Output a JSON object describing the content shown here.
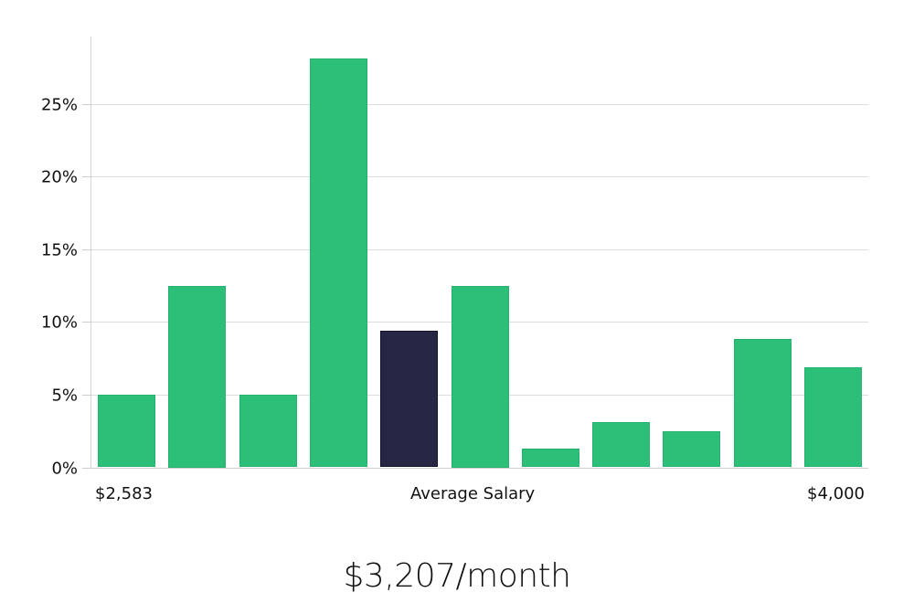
{
  "chart_data": {
    "type": "bar",
    "title": "",
    "xlabel": "Average Salary",
    "ylabel": "",
    "ylim": [
      0,
      30
    ],
    "yticks": [
      "0%",
      "5%",
      "10%",
      "15%",
      "20%",
      "25%"
    ],
    "grid": true,
    "x_range_labels": {
      "min": "$2,583",
      "max": "$4,000"
    },
    "categories": [
      "bin 1",
      "bin 2",
      "bin 3",
      "bin 4",
      "bin 5",
      "bin 6",
      "bin 7",
      "bin 8",
      "bin 9",
      "bin 10",
      "bin 11"
    ],
    "values": [
      5.0,
      12.5,
      5.0,
      28.1,
      9.4,
      12.5,
      1.3,
      3.1,
      2.5,
      8.8,
      6.9
    ],
    "highlight_index": 4,
    "colors": {
      "default": "#2bbf78",
      "highlight": "#272644",
      "grid": "#dcdcdc"
    },
    "summary": "$3,207/month"
  },
  "axis": {
    "y_labels": [
      "0%",
      "5%",
      "10%",
      "15%",
      "20%",
      "25%"
    ],
    "x_min_label": "$2,583",
    "x_center_label": "Average Salary",
    "x_max_label": "$4,000"
  },
  "summary": {
    "salary_text": "$3,207/month"
  }
}
